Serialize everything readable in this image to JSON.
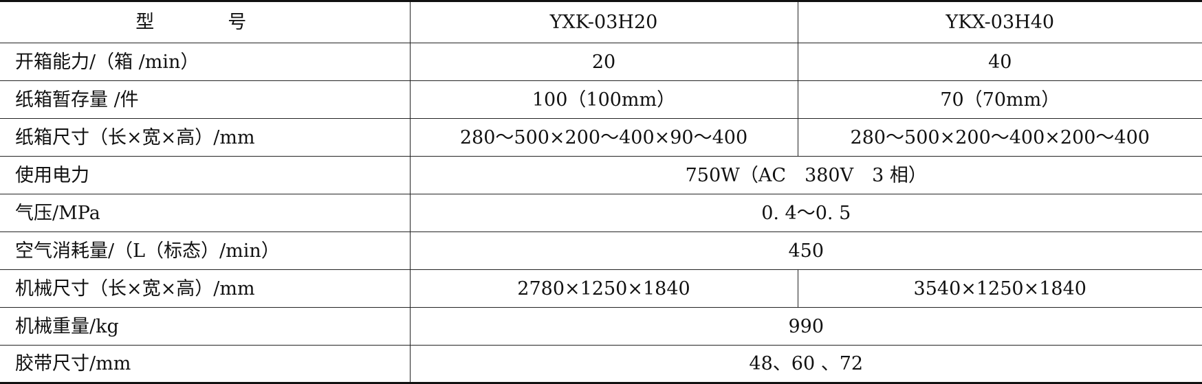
{
  "header": {
    "label": "型　号",
    "models": [
      "YXK-03H20",
      "YKX-03H40"
    ]
  },
  "rows": [
    {
      "label": "开箱能力/（箱 /min）",
      "values": [
        "20",
        "40"
      ]
    },
    {
      "label": "纸箱暂存量 /件",
      "values": [
        "100（100mm）",
        "70（70mm）"
      ]
    },
    {
      "label": "纸箱尺寸（长×宽×高）/mm",
      "values": [
        "280～500×200～400×90～400",
        "280～500×200～400×200～400"
      ]
    },
    {
      "label": "使用电力",
      "merged": "750W（AC　380V　3 相）"
    },
    {
      "label": "气压/MPa",
      "merged": "0. 4～0. 5"
    },
    {
      "label": "空气消耗量/（L（标态）/min）",
      "merged": "450"
    },
    {
      "label": "机械尺寸（长×宽×高）/mm",
      "values": [
        "2780×1250×1840",
        "3540×1250×1840"
      ]
    },
    {
      "label": "机械重量/kg",
      "merged": "990"
    },
    {
      "label": "胶带尺寸/mm",
      "merged": "48、60 、72"
    }
  ]
}
